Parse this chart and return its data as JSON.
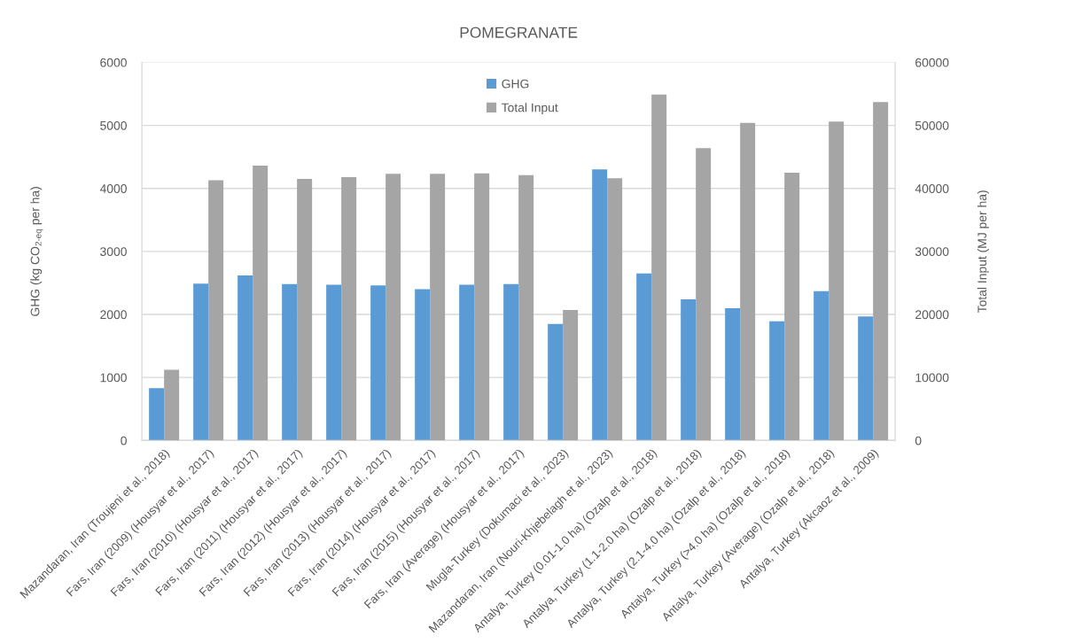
{
  "chart_data": {
    "type": "bar",
    "title": "POMEGRANATE",
    "ylabel": "GHG (kg CO$_{2‐eq}$ per ha)",
    "y2label": "Total Input (MJ per ha)",
    "categories": [
      "Mazandaran, Iran (Troujeni et al., 2018)",
      "Fars, Iran (2009) (Housyar et al., 2017)",
      "Fars, Iran (2010) (Housyar et al., 2017)",
      "Fars, Iran (2011) (Housyar et al., 2017)",
      "Fars, Iran (2012) (Housyar et al., 2017)",
      "Fars, Iran (2013) (Housyar et al., 2017)",
      "Fars, Iran (2014) (Housyar et al., 2017)",
      "Fars, Iran (2015) (Housyar et al., 2017)",
      "Fars, Iran (Average) (Housyar et al., 2017)",
      "Mugla-Turkey (Dokumaci et al., 2023)",
      "Mazandaran, Iran (Nouri-Khjebelagh et al., 2023)",
      "Antalya, Turkey (0.01-1.0 ha) (Ozalp et al., 2018)",
      "Antalya, Turkey (1.1-2.0 ha) (Ozalp et al., 2018)",
      "Antalya, Turkey (2.1-4.0 ha) (Ozalp et al., 2018)",
      "Antalya, Turkey (>4.0 ha) (Ozalp et al., 2018)",
      "Antalya, Turkey (Average) (Ozalp et al., 2018)",
      "Antalya, Turkey (Akcaoz et al., 2009)"
    ],
    "series": [
      {
        "name": "GHG",
        "color": "#5b9bd5",
        "values": [
          830,
          2490,
          2620,
          2480,
          2470,
          2460,
          2400,
          2470,
          2480,
          1850,
          4300,
          2650,
          2240,
          2100,
          1890,
          2370,
          1970
        ]
      },
      {
        "name": "Total Input",
        "color": "#a5a5a5",
        "axis": "y2",
        "values": [
          11200,
          41300,
          43600,
          41500,
          41800,
          42300,
          42300,
          42400,
          42100,
          20700,
          41600,
          54900,
          46400,
          50400,
          42500,
          50600,
          53700
        ]
      }
    ],
    "ylim": [
      0,
      6000
    ],
    "yticks": [
      0,
      1000,
      2000,
      3000,
      4000,
      5000,
      6000
    ],
    "y2lim": [
      0,
      60000
    ],
    "y2ticks": [
      0,
      10000,
      20000,
      30000,
      40000,
      50000,
      60000
    ],
    "grid": "y",
    "legend": "top"
  }
}
